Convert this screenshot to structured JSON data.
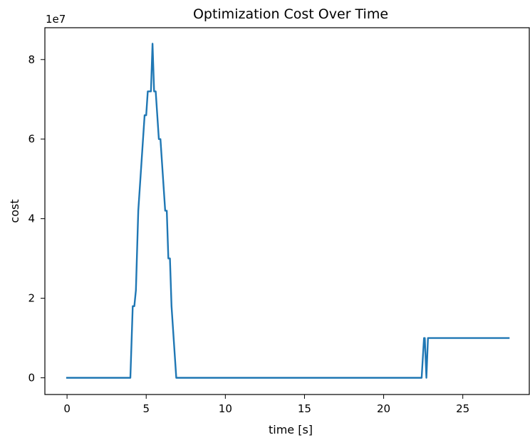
{
  "chart_data": {
    "type": "line",
    "title": "Optimization Cost Over Time",
    "xlabel": "time [s]",
    "ylabel": "cost",
    "y_offset_label": "1e7",
    "xlim": [
      -1.4,
      29.2
    ],
    "ylim": [
      -0.42,
      8.8
    ],
    "y_scale_factor": 10000000,
    "grid": false,
    "legend": "none",
    "x_ticks": [
      0,
      5,
      10,
      15,
      20,
      25
    ],
    "x_tick_labels": [
      "0",
      "5",
      "10",
      "15",
      "20",
      "25"
    ],
    "y_ticks": [
      0,
      2,
      4,
      6,
      8
    ],
    "y_tick_labels": [
      "0",
      "2",
      "4",
      "6",
      "8"
    ],
    "series": [
      {
        "color": "#1f77b4",
        "x": [
          0,
          1,
          2,
          3,
          4,
          4.05,
          4.15,
          4.25,
          4.35,
          4.5,
          4.7,
          4.9,
          5.0,
          5.1,
          5.3,
          5.4,
          5.5,
          5.6,
          5.8,
          5.9,
          6.1,
          6.2,
          6.3,
          6.4,
          6.5,
          6.6,
          6.9,
          10,
          15,
          20,
          22.4,
          22.55,
          22.6,
          22.7,
          22.8,
          25,
          27.9
        ],
        "y": [
          0,
          0,
          0,
          0,
          0,
          0.6,
          1.8,
          1.8,
          2.2,
          4.2,
          5.4,
          6.6,
          6.6,
          7.2,
          7.2,
          8.4,
          7.2,
          7.2,
          6.0,
          6.0,
          4.8,
          4.2,
          4.2,
          3.0,
          3.0,
          1.8,
          0,
          0,
          0,
          0,
          0,
          1.0,
          1.0,
          0,
          1.0,
          1.0,
          1.0
        ]
      }
    ]
  }
}
